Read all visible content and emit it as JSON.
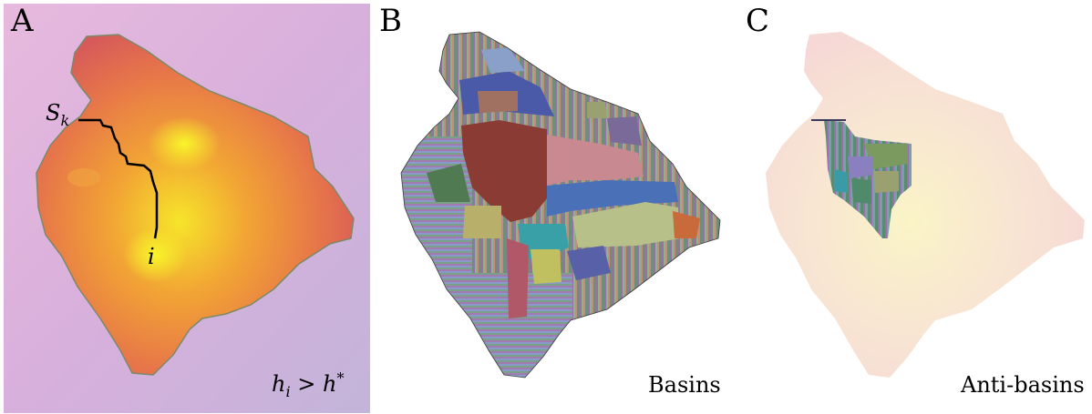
{
  "panels": {
    "a": {
      "letter": "A",
      "start_label": "S",
      "start_sub": "k",
      "point_label": "i",
      "condition": {
        "lhs": "h",
        "lhs_sub": "i",
        "op": " > ",
        "rhs": "h",
        "rhs_sup": "*"
      }
    },
    "b": {
      "letter": "B",
      "caption": "Basins"
    },
    "c": {
      "letter": "C",
      "caption": "Anti-basins"
    }
  },
  "colors": {
    "background_a": "#d9b2d9",
    "island_edge": "#d95a5a",
    "island_mid": "#f2a33a",
    "island_peak": "#f4f02a",
    "path": "#000000",
    "faded_island": "#f6dcd8"
  }
}
